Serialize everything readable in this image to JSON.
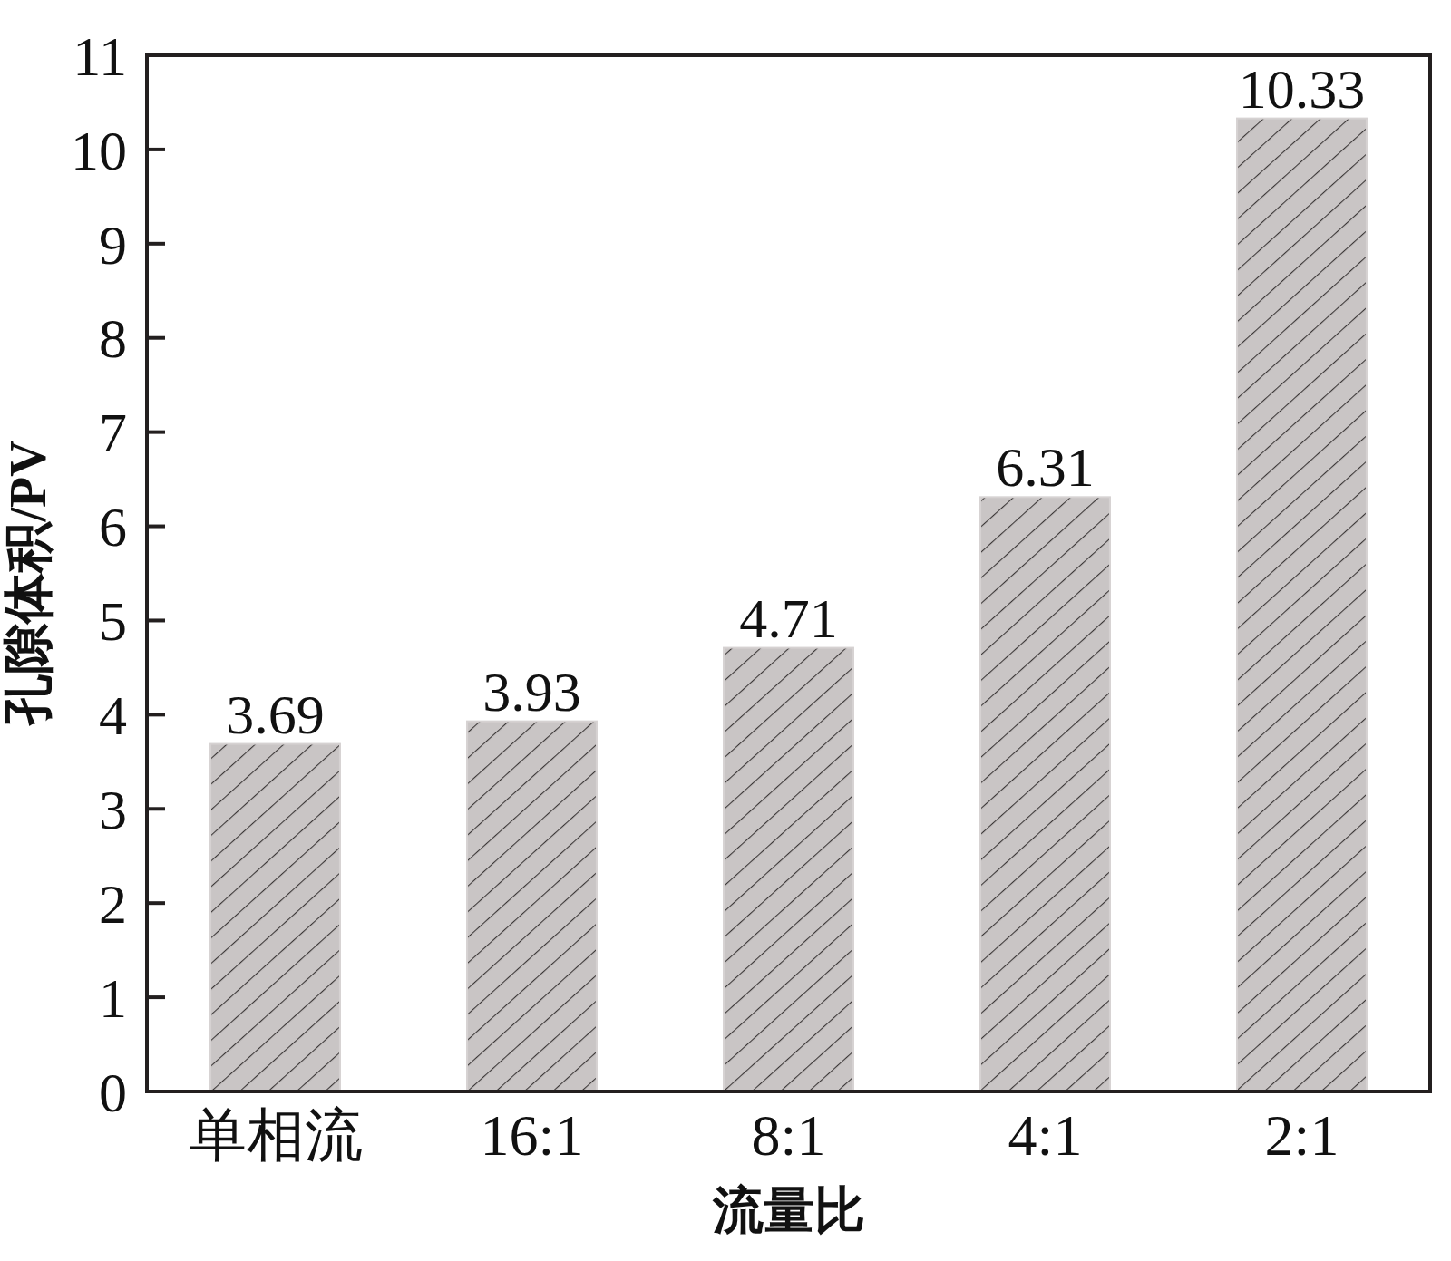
{
  "chart_data": {
    "type": "bar",
    "xlabel": "流量比",
    "ylabel": "孔隙体积/PV",
    "categories": [
      "单相流",
      "16:1",
      "8:1",
      "4:1",
      "2:1"
    ],
    "values": [
      3.69,
      3.93,
      4.71,
      6.31,
      10.33
    ],
    "color": "#c9c5c5",
    "ylim": [
      0,
      11
    ],
    "yticks": [
      0,
      1,
      2,
      3,
      4,
      5,
      6,
      7,
      8,
      9,
      10,
      11
    ],
    "data_labels": true
  }
}
